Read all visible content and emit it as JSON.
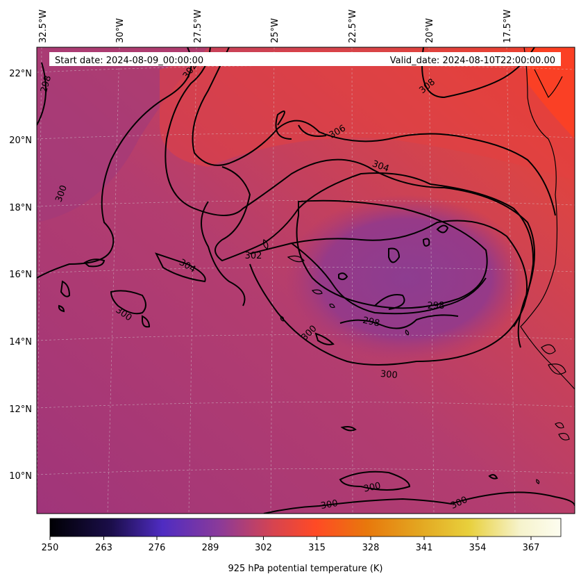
{
  "header": {
    "start_date": "Start date: 2024-08-09_00:00:00",
    "valid_date": "Valid_date: 2024-08-10T22:00:00.00"
  },
  "map": {
    "lon_labels": [
      "32.5°W",
      "30°W",
      "27.5°W",
      "25°W",
      "22.5°W",
      "20°W",
      "17.5°W"
    ],
    "lat_labels": [
      "22°N",
      "20°N",
      "18°N",
      "16°N",
      "14°N",
      "12°N",
      "10°N"
    ],
    "contour_labels": [
      {
        "text": "298",
        "rot": -75
      },
      {
        "text": "302",
        "rot": -55
      },
      {
        "text": "306",
        "rot": -30
      },
      {
        "text": "308",
        "rot": -40
      },
      {
        "text": "304",
        "rot": 20
      },
      {
        "text": "300",
        "rot": -70
      },
      {
        "text": "302",
        "rot": 0
      },
      {
        "text": "304",
        "rot": 30
      },
      {
        "text": "300",
        "rot": 35
      },
      {
        "text": "298",
        "rot": 0
      },
      {
        "text": "300",
        "rot": -45
      },
      {
        "text": "298",
        "rot": 12
      },
      {
        "text": "300",
        "rot": 5
      },
      {
        "text": "300",
        "rot": -12
      },
      {
        "text": "300",
        "rot": -10
      },
      {
        "text": "300",
        "rot": -25
      }
    ]
  },
  "colorbar": {
    "ticks": [
      "250",
      "263",
      "276",
      "289",
      "302",
      "315",
      "328",
      "341",
      "354",
      "367"
    ],
    "label": "925 hPa potential temperature (K)",
    "colors": [
      "#000004",
      "#1b0e4a",
      "#4f2cc2",
      "#9b3b8a",
      "#e84a3c",
      "#ff4a25",
      "#e8780c",
      "#e3a520",
      "#e8d03c",
      "#f6f3cc",
      "#fdfdf0"
    ]
  }
}
